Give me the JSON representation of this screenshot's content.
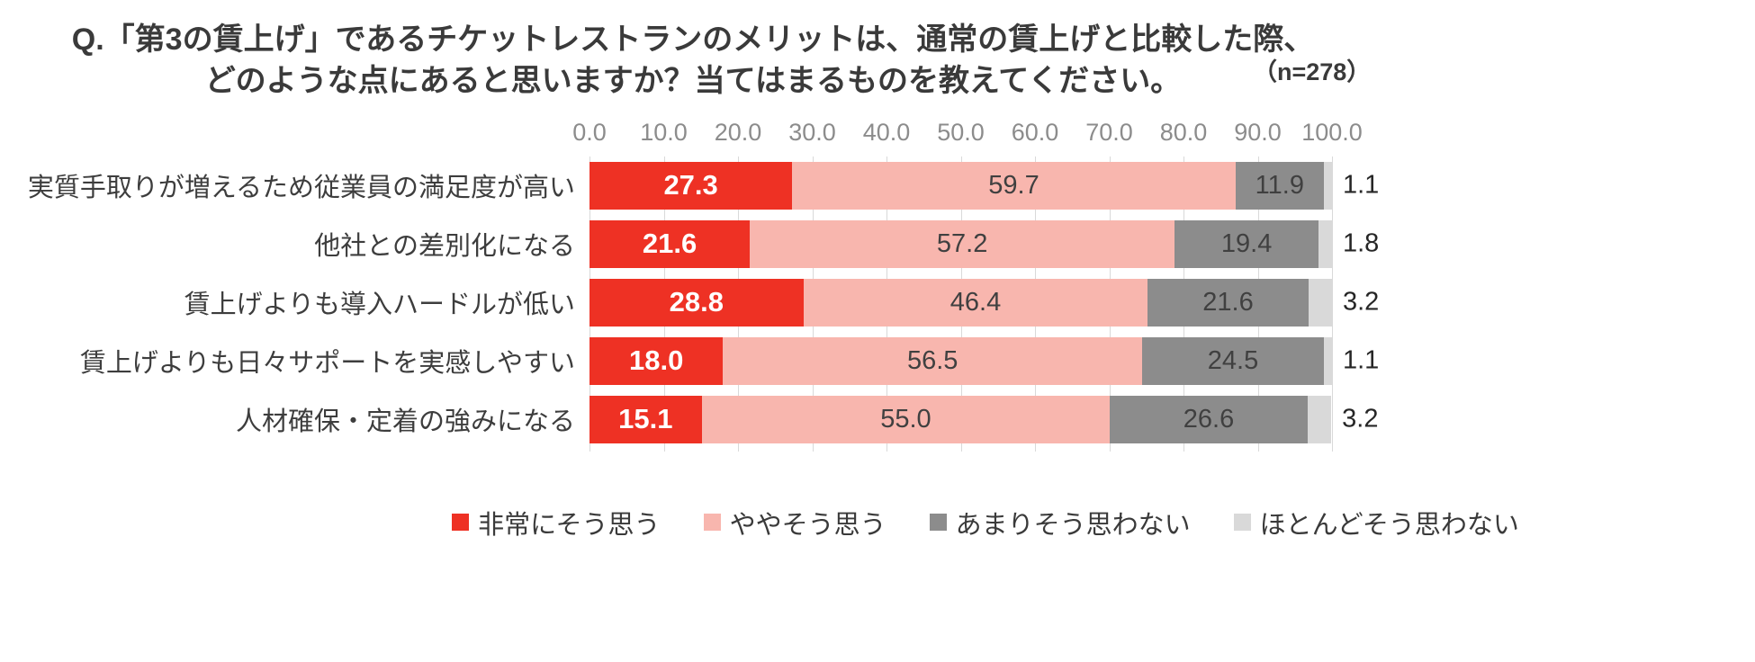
{
  "title": {
    "line1": "Q.「第3の賃上げ」であるチケットレストランのメリットは、通常の賃上げと比較した際、",
    "line2": "どのような点にあると思いますか？当てはまるものを教えてください。",
    "n_label": "（n=278）"
  },
  "chart_data": {
    "type": "bar",
    "orientation": "horizontal",
    "stacked": true,
    "grid": true,
    "legend_position": "bottom",
    "x_axis": {
      "min": 0,
      "max": 100,
      "ticks": [
        "0.0",
        "10.0",
        "20.0",
        "30.0",
        "40.0",
        "50.0",
        "60.0",
        "70.0",
        "80.0",
        "90.0",
        "100.0"
      ]
    },
    "categories": [
      "実質手取りが増えるため従業員の満足度が高い",
      "他社との差別化になる",
      "賃上げよりも導入ハードルが低い",
      "賃上げよりも日々サポートを実感しやすい",
      "人材確保・定着の強みになる"
    ],
    "series": [
      {
        "name": "非常にそう思う",
        "color": "#ee3124",
        "values": [
          27.3,
          21.6,
          28.8,
          18.0,
          15.1
        ]
      },
      {
        "name": "ややそう思う",
        "color": "#f8b6ae",
        "values": [
          59.7,
          57.2,
          46.4,
          56.5,
          55.0
        ]
      },
      {
        "name": "あまりそう思わない",
        "color": "#8c8c8c",
        "values": [
          11.9,
          19.4,
          21.6,
          24.5,
          26.6
        ]
      },
      {
        "name": "ほとんどそう思わない",
        "color": "#d9d9d9",
        "values": [
          1.1,
          1.8,
          3.2,
          1.1,
          3.2
        ]
      }
    ]
  }
}
